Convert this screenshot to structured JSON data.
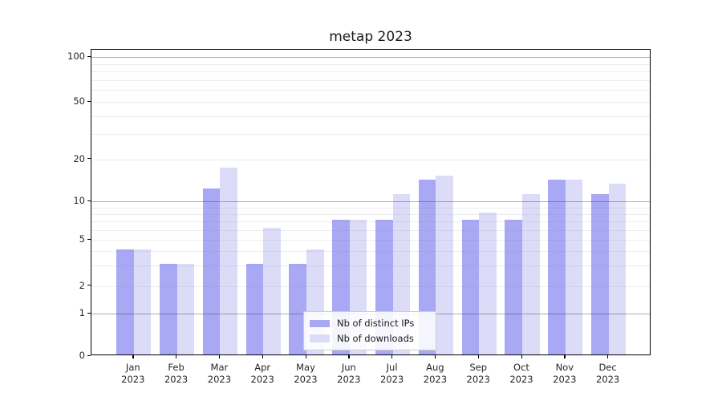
{
  "chart_data": {
    "type": "bar",
    "title": "metap 2023",
    "x_months": [
      "Jan",
      "Feb",
      "Mar",
      "Apr",
      "May",
      "Jun",
      "Jul",
      "Aug",
      "Sep",
      "Oct",
      "Nov",
      "Dec"
    ],
    "x_year": "2023",
    "categories": [
      "Jan 2023",
      "Feb 2023",
      "Mar 2023",
      "Apr 2023",
      "May 2023",
      "Jun 2023",
      "Jul 2023",
      "Aug 2023",
      "Sep 2023",
      "Oct 2023",
      "Nov 2023",
      "Dec 2023"
    ],
    "series": [
      {
        "name": "Nb of distinct IPs",
        "color": "#a8a8f4",
        "values": [
          4,
          3,
          12,
          3,
          3,
          7,
          7,
          14,
          7,
          7,
          14,
          11
        ]
      },
      {
        "name": "Nb of downloads",
        "color": "#dcdcf9",
        "values": [
          4,
          3,
          17,
          6,
          4,
          7,
          11,
          15,
          8,
          11,
          14,
          13
        ]
      }
    ],
    "xlabel": "",
    "ylabel": "",
    "ylim": [
      0,
      112
    ],
    "yscale": "log above 1, linear segment 0 to 1",
    "yticks": [
      0,
      1,
      2,
      5,
      10,
      20,
      50,
      100
    ],
    "ytick_labels": [
      "0",
      "1",
      "2",
      "5",
      "10",
      "20",
      "50",
      "100"
    ],
    "grid": "horizontal on",
    "major_grid_values": [
      1,
      10,
      100
    ],
    "minor_grid_values": [
      2,
      3,
      4,
      5,
      6,
      7,
      8,
      9,
      20,
      30,
      40,
      50,
      60,
      70,
      80,
      90
    ],
    "legend_position": "bottom center",
    "colors": {
      "major_grid": "#b0b0b0",
      "minor_grid": "#ececec",
      "axis_line": "#000000",
      "text": "#262626",
      "legend_border": "#cccccc",
      "legend_background": "#ffffff",
      "plot_background": "#ffffff"
    }
  }
}
